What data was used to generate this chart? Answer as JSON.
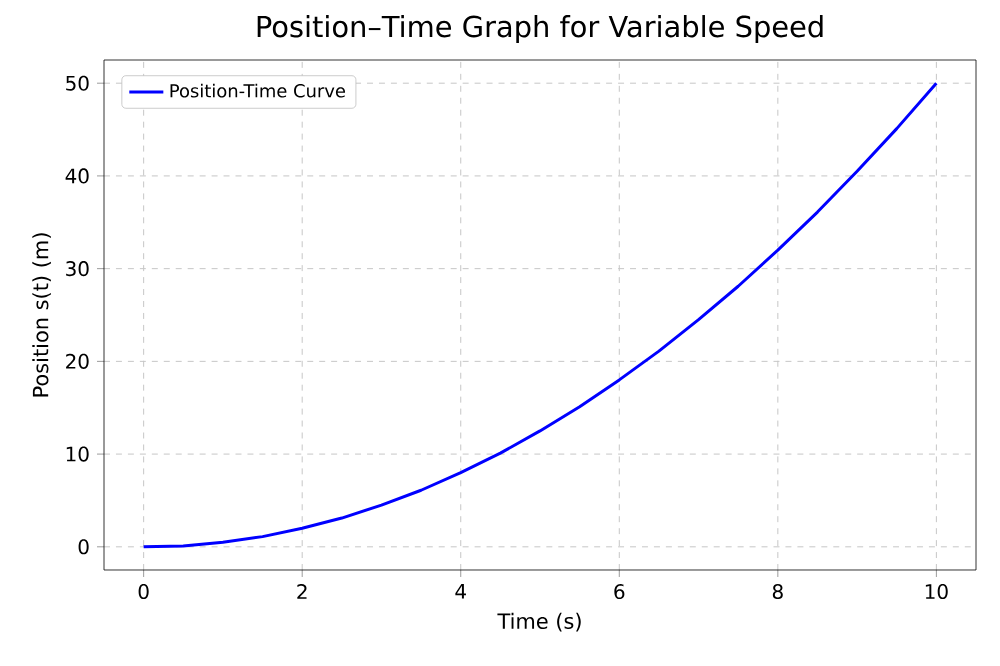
{
  "chart_data": {
    "type": "line",
    "title": "Position–Time Graph for Variable Speed",
    "xlabel": "Time (s)",
    "ylabel": "Position s(t) (m)",
    "x": [
      0,
      0.5,
      1,
      1.5,
      2,
      2.5,
      3,
      3.5,
      4,
      4.5,
      5,
      5.5,
      6,
      6.5,
      7,
      7.5,
      8,
      8.5,
      9,
      9.5,
      10
    ],
    "series": [
      {
        "name": "Position-Time Curve",
        "color": "#0000ff",
        "values": [
          0,
          0.1,
          0.5,
          1.1,
          2,
          3.1,
          4.5,
          6.1,
          8,
          10.1,
          12.5,
          15.1,
          18,
          21.1,
          24.5,
          28.1,
          32,
          36.1,
          40.5,
          45.1,
          50
        ]
      }
    ],
    "xlim": [
      -0.5,
      10.5
    ],
    "ylim": [
      -2.5,
      52.5
    ],
    "xticks": [
      0,
      2,
      4,
      6,
      8,
      10
    ],
    "yticks": [
      0,
      10,
      20,
      30,
      40,
      50
    ],
    "grid": true,
    "legend": "top left",
    "marker": "none",
    "line_style": "solid"
  }
}
